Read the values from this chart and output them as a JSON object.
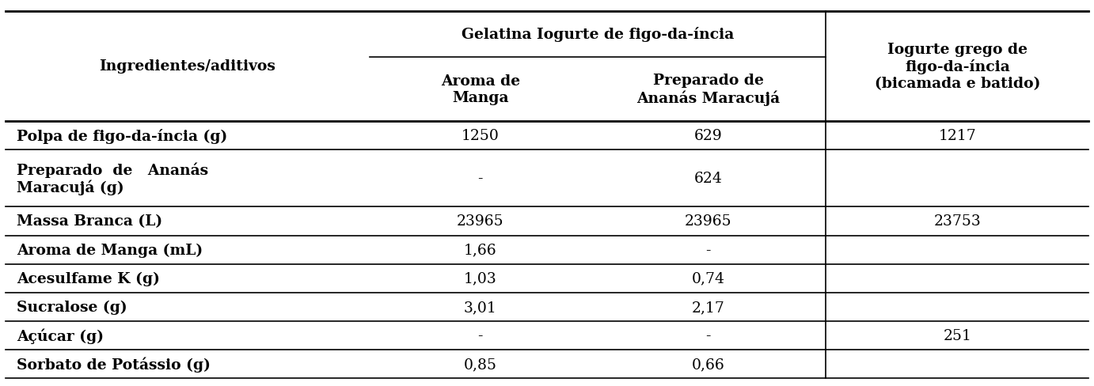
{
  "gelatina_header": "Gelatina Iogurte de figo-da-íncia",
  "gelatina_header_text": "Gelatina Iogurte de figo-da-íncia",
  "iogurte_header": "Iogurte grego de\nfigo-da-íncia\n(bicamada e batido)",
  "ingredientes_label": "Ingredientes/aditivos",
  "col1_header": "Aroma de\nManga",
  "col2_header": "Preparado de\nAnanás Maracujá",
  "rows": [
    [
      "Polpa de figo-da-íncia (g)",
      "1250",
      "629",
      "1217"
    ],
    [
      "Preparado  de   Ananás\nMaracujá (g)",
      "-",
      "624",
      ""
    ],
    [
      "Massa Branca (L)",
      "23965",
      "23965",
      "23753"
    ],
    [
      "Aroma de Manga (mL)",
      "1,66",
      "-",
      ""
    ],
    [
      "Acesulfame K (g)",
      "1,03",
      "0,74",
      ""
    ],
    [
      "Sucralose (g)",
      "3,01",
      "2,17",
      ""
    ],
    [
      "Açúcar (g)",
      "-",
      "-",
      "251"
    ],
    [
      "Sorbato de Potássio (g)",
      "0,85",
      "0,66",
      ""
    ]
  ],
  "row_heights": [
    1,
    2,
    1,
    1,
    1,
    1,
    1,
    1
  ],
  "background_color": "#ffffff",
  "line_color": "#000000",
  "text_color": "#000000",
  "font_size": 13.5,
  "header_font_size": 13.5
}
